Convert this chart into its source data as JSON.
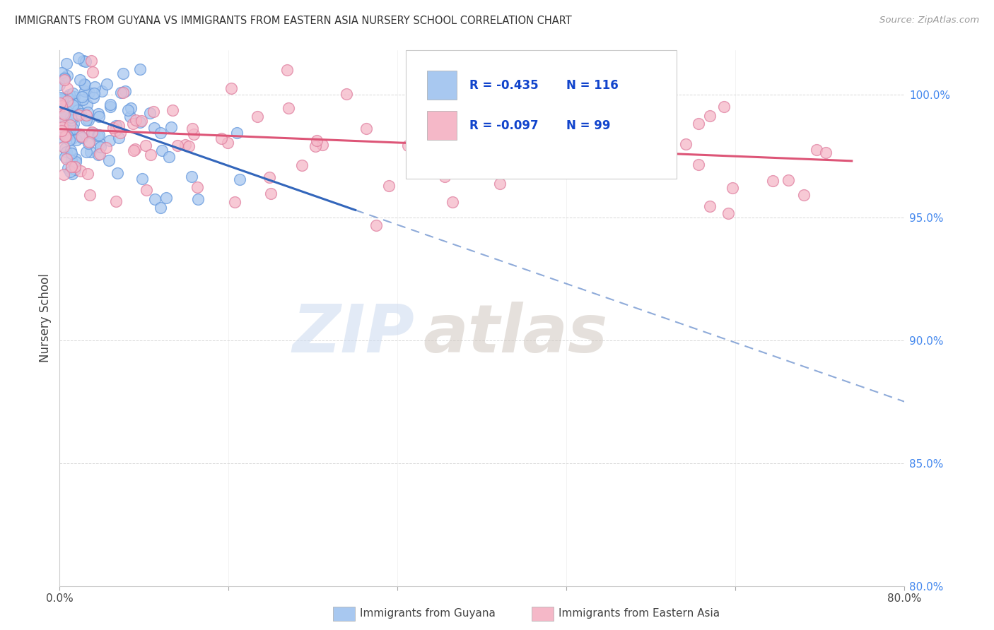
{
  "title": "IMMIGRANTS FROM GUYANA VS IMMIGRANTS FROM EASTERN ASIA NURSERY SCHOOL CORRELATION CHART",
  "source": "Source: ZipAtlas.com",
  "ylabel": "Nursery School",
  "y_ticks": [
    80.0,
    85.0,
    90.0,
    95.0,
    100.0
  ],
  "y_tick_labels": [
    "80.0%",
    "85.0%",
    "90.0%",
    "95.0%",
    "100.0%"
  ],
  "legend_label_blue": "Immigrants from Guyana",
  "legend_label_pink": "Immigrants from Eastern Asia",
  "legend_R_blue": "R = -0.435",
  "legend_N_blue": "N = 116",
  "legend_R_pink": "R = -0.097",
  "legend_N_pink": "N = 99",
  "blue_color": "#A8C8F0",
  "blue_edge_color": "#6699DD",
  "pink_color": "#F5B8C8",
  "pink_edge_color": "#E080A0",
  "trend_blue_color": "#3366BB",
  "trend_pink_color": "#DD5577",
  "background_color": "#FFFFFF",
  "N_blue": 116,
  "N_pink": 99,
  "xmin": 0.0,
  "xmax": 80.0,
  "ymin": 80.0,
  "ymax": 101.8,
  "trend_blue_x0": 0.0,
  "trend_blue_y0": 99.5,
  "trend_blue_x1": 80.0,
  "trend_blue_y1": 87.5,
  "trend_blue_solid_end_x": 28.0,
  "trend_pink_x0": 0.0,
  "trend_pink_y0": 98.6,
  "trend_pink_x1": 75.0,
  "trend_pink_y1": 97.3,
  "watermark_text": "ZIP",
  "watermark_text2": "atlas"
}
